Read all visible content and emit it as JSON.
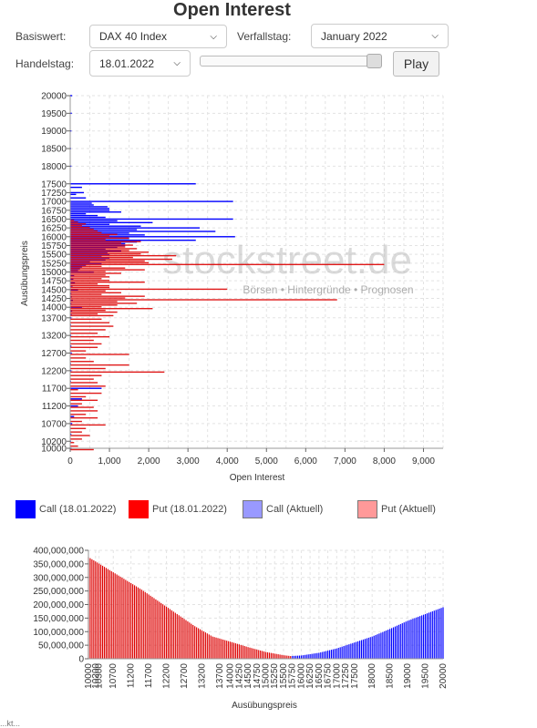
{
  "page": {
    "title": "Open Interest",
    "basiswert_label": "Basiswert:",
    "basiswert_value": "DAX 40 Index",
    "verfallstag_label": "Verfallstag:",
    "verfallstag_value": "January 2022",
    "handelstag_label": "Handelstag:",
    "handelstag_value": "18.01.2022",
    "play_label": "Play",
    "slider_position": 1.0,
    "footer_fragment": "...kt..."
  },
  "watermark": {
    "brand": "stockstreet.de",
    "tagline": "Börsen • Hintergründe • Prognosen"
  },
  "legend": [
    {
      "label": "Call (18.01.2022)",
      "color": "#0000ff"
    },
    {
      "label": "Put (18.01.2022)",
      "color": "#ff0000"
    },
    {
      "label": "Call (Aktuell)",
      "color": "#9999ff"
    },
    {
      "label": "Put (Aktuell)",
      "color": "#ff9999"
    }
  ],
  "colors": {
    "call": "#0000ff",
    "put": "#dd0000",
    "overlap": "#aa0077",
    "grid": "#e3e3e3"
  },
  "chart_data": [
    {
      "type": "bar",
      "orientation": "horizontal",
      "xlabel": "Open Interest",
      "ylabel": "Ausübungspreis",
      "xlim": [
        0,
        9500
      ],
      "ylim": [
        10000,
        20000
      ],
      "x_ticks": [
        "0",
        "1,000",
        "2,000",
        "3,000",
        "4,000",
        "5,000",
        "6,000",
        "7,000",
        "8,000",
        "9,000"
      ],
      "y_ticks": [
        "20000",
        "19500",
        "19000",
        "18500",
        "18000",
        "17500",
        "17250",
        "17000",
        "16750",
        "16500",
        "16250",
        "16000",
        "15750",
        "15500",
        "15250",
        "15000",
        "14750",
        "14500",
        "14250",
        "14000",
        "13700",
        "13200",
        "12700",
        "12200",
        "11700",
        "11200",
        "10700",
        "10200",
        "10000"
      ],
      "series": [
        {
          "name": "Call (18.01.2022)",
          "strikes": [
            20000,
            19500,
            19000,
            18500,
            18000,
            17500,
            17400,
            17250,
            17200,
            17100,
            17000,
            16950,
            16900,
            16850,
            16800,
            16750,
            16700,
            16650,
            16600,
            16550,
            16500,
            16450,
            16400,
            16350,
            16300,
            16250,
            16200,
            16150,
            16100,
            16050,
            16000,
            15950,
            15900,
            15850,
            15800,
            15750,
            15700,
            15650,
            15600,
            15550,
            15500,
            15450,
            15400,
            15350,
            15300,
            15250,
            15200,
            15150,
            15100,
            15050,
            15000,
            14900,
            14800,
            14700,
            14600,
            14500,
            14400,
            14300,
            14200,
            14100,
            14000,
            13900,
            13800,
            13700,
            13500,
            13200,
            12900,
            12700,
            12400,
            12200,
            11900,
            11700,
            11400,
            11200,
            10900,
            10700,
            10400,
            10200,
            10000
          ],
          "values": [
            50,
            40,
            30,
            20,
            30,
            3200,
            300,
            350,
            150,
            400,
            4150,
            550,
            600,
            950,
            1000,
            1000,
            1300,
            400,
            700,
            900,
            4150,
            1200,
            2100,
            1000,
            1800,
            3300,
            1700,
            3700,
            1500,
            1900,
            4200,
            1500,
            3200,
            1700,
            1400,
            1400,
            1200,
            900,
            1300,
            950,
            1000,
            800,
            1000,
            900,
            500,
            800,
            400,
            300,
            250,
            200,
            600,
            100,
            80,
            120,
            60,
            200,
            30,
            40,
            70,
            30,
            300,
            50,
            40,
            30,
            20,
            25,
            30,
            40,
            20,
            30,
            20,
            800,
            300,
            200,
            100,
            50,
            30,
            20,
            40
          ]
        },
        {
          "name": "Put (18.01.2022)",
          "strikes": [
            16500,
            16450,
            16400,
            16350,
            16300,
            16250,
            16200,
            16150,
            16100,
            16050,
            16000,
            15950,
            15900,
            15850,
            15800,
            15750,
            15700,
            15650,
            15600,
            15550,
            15500,
            15450,
            15400,
            15350,
            15300,
            15250,
            15200,
            15150,
            15100,
            15050,
            15000,
            14950,
            14900,
            14850,
            14800,
            14750,
            14700,
            14650,
            14600,
            14550,
            14500,
            14450,
            14400,
            14350,
            14300,
            14250,
            14200,
            14150,
            14100,
            14050,
            14000,
            13950,
            13900,
            13850,
            13800,
            13700,
            13600,
            13500,
            13400,
            13300,
            13200,
            13100,
            13000,
            12900,
            12800,
            12700,
            12600,
            12500,
            12400,
            12300,
            12200,
            12100,
            12000,
            11900,
            11800,
            11700,
            11600,
            11500,
            11400,
            11300,
            11200,
            11100,
            11000,
            10900,
            10800,
            10700,
            10600,
            10500,
            10400,
            10300,
            10200,
            10100,
            10000
          ],
          "values": [
            100,
            200,
            400,
            300,
            500,
            600,
            700,
            800,
            1200,
            1000,
            1500,
            900,
            1800,
            1300,
            1600,
            1400,
            1700,
            1500,
            2000,
            1800,
            2700,
            1600,
            2600,
            1900,
            2000,
            8000,
            800,
            1400,
            1900,
            900,
            1300,
            900,
            1000,
            800,
            1000,
            1900,
            700,
            1000,
            1000,
            4000,
            900,
            1300,
            800,
            1900,
            1400,
            6800,
            1200,
            1700,
            1200,
            800,
            2100,
            900,
            1200,
            700,
            1100,
            800,
            1000,
            1100,
            900,
            700,
            1000,
            600,
            800,
            700,
            400,
            1500,
            400,
            600,
            1500,
            900,
            2400,
            800,
            600,
            700,
            900,
            200,
            800,
            400,
            700,
            300,
            600,
            700,
            400,
            700,
            300,
            900,
            400,
            300,
            500,
            300,
            100,
            200,
            600
          ]
        }
      ]
    },
    {
      "type": "bar",
      "xlabel": "Ausübungspreis",
      "ylabel": "",
      "ylim": [
        0,
        400000000
      ],
      "y_ticks": [
        "400,000,000",
        "350,000,000",
        "300,000,000",
        "250,000,000",
        "200,000,000",
        "150,000,000",
        "100,000,000",
        "50,000,000",
        "0"
      ],
      "x_ticks": [
        "10000",
        "10200",
        "10300",
        "10700",
        "11200",
        "11700",
        "12200",
        "12700",
        "13200",
        "13700",
        "14000",
        "14250",
        "14500",
        "14750",
        "15000",
        "15250",
        "15500",
        "15750",
        "16000",
        "16250",
        "16500",
        "16750",
        "17000",
        "17250",
        "17500",
        "18000",
        "18500",
        "19000",
        "19500",
        "20000"
      ],
      "strike_min": 10000,
      "strike_max": 20000,
      "strike_step": 50,
      "min_strike": 15700,
      "values_at": [
        [
          10000,
          375000000
        ],
        [
          10500,
          335000000
        ],
        [
          11000,
          295000000
        ],
        [
          11500,
          255000000
        ],
        [
          12000,
          210000000
        ],
        [
          12500,
          165000000
        ],
        [
          13000,
          120000000
        ],
        [
          13500,
          82000000
        ],
        [
          14000,
          63000000
        ],
        [
          14500,
          43000000
        ],
        [
          15000,
          25000000
        ],
        [
          15500,
          13000000
        ],
        [
          15700,
          10000000
        ],
        [
          16000,
          12000000
        ],
        [
          16500,
          22000000
        ],
        [
          17000,
          38000000
        ],
        [
          17500,
          60000000
        ],
        [
          18000,
          82000000
        ],
        [
          18500,
          110000000
        ],
        [
          19000,
          140000000
        ],
        [
          19500,
          165000000
        ],
        [
          20000,
          190000000
        ]
      ],
      "series": [
        {
          "name": "Put",
          "color": "#dd0000",
          "range": [
            10000,
            15700
          ]
        },
        {
          "name": "Call",
          "color": "#0000ff",
          "range": [
            15700,
            20000
          ]
        }
      ]
    }
  ]
}
